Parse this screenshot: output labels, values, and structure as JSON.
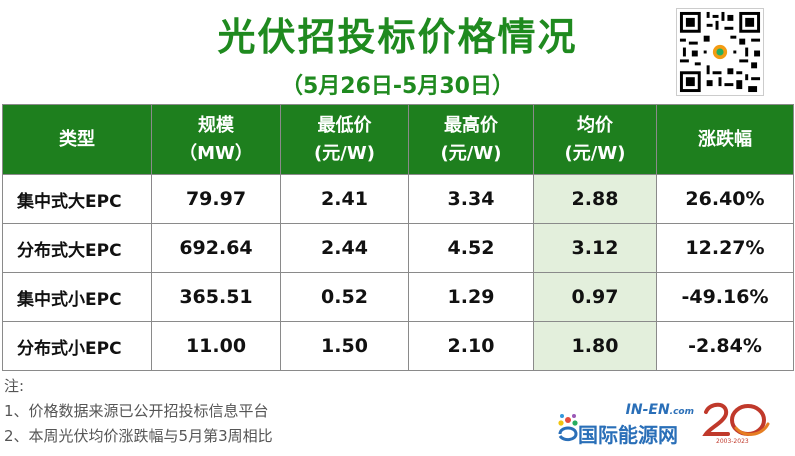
{
  "title": "光伏招投标价格情况",
  "subtitle": "（5月26日-5月30日）",
  "table": {
    "headers": [
      {
        "line1": "类型",
        "line2": ""
      },
      {
        "line1": "规模",
        "line2": "（MW）"
      },
      {
        "line1": "最低价",
        "line2": "(元/W)"
      },
      {
        "line1": "最高价",
        "line2": "(元/W)"
      },
      {
        "line1": "均价",
        "line2": "(元/W)"
      },
      {
        "line1": "涨跌幅",
        "line2": ""
      }
    ],
    "rows": [
      {
        "type": "集中式大EPC",
        "scale": "79.97",
        "min": "2.41",
        "max": "3.34",
        "avg": "2.88",
        "change": "26.40%"
      },
      {
        "type": "分布式大EPC",
        "scale": "692.64",
        "min": "2.44",
        "max": "4.52",
        "avg": "3.12",
        "change": "12.27%"
      },
      {
        "type": "集中式小EPC",
        "scale": "365.51",
        "min": "0.52",
        "max": "1.29",
        "avg": "0.97",
        "change": "-49.16%"
      },
      {
        "type": "分布式小EPC",
        "scale": "11.00",
        "min": "1.50",
        "max": "2.10",
        "avg": "1.80",
        "change": "-2.84%"
      }
    ]
  },
  "notes": {
    "label": "注:",
    "items": [
      "1、价格数据来源已公开招投标信息平台",
      "2、本周光伏均价涨跌幅与5月第3周相比"
    ]
  },
  "logo": {
    "en": "IN-EN",
    "en_suffix": ".com",
    "cn": "国际能源网"
  },
  "badge": {
    "years": "2003-2023"
  },
  "colors": {
    "title_green": "#1f8a1f",
    "header_bg": "#1e7f1e",
    "avg_column_bg": "#e3efdc",
    "logo_blue": "#2a6fb8"
  }
}
